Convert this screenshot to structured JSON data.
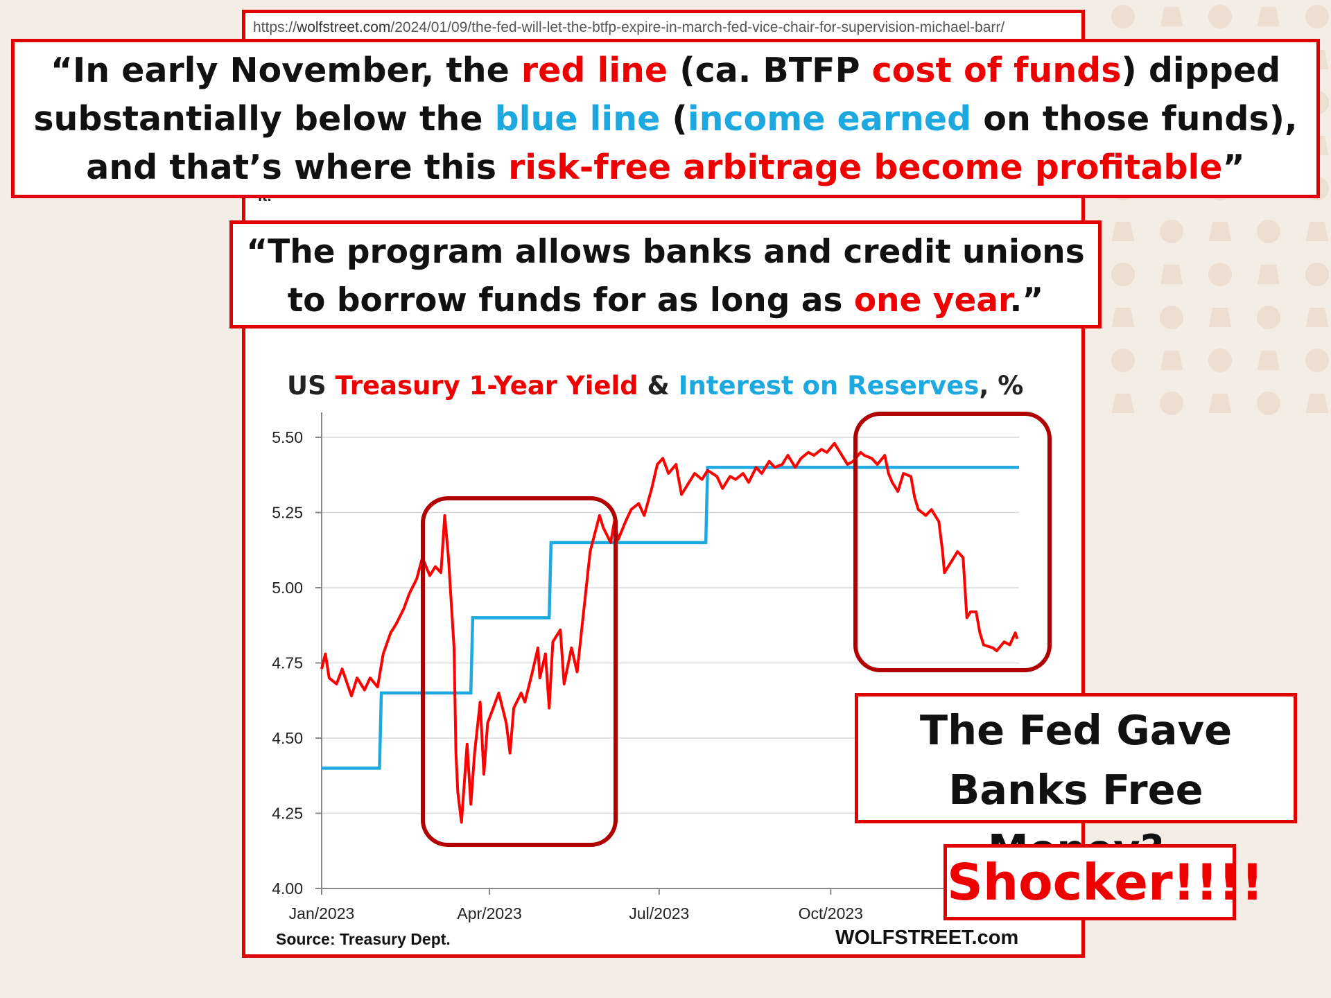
{
  "url": {
    "prefix": "https://",
    "host": "wolfstreet.com",
    "path": "/2024/01/09/the-fed-will-let-the-btfp-expire-in-march-fed-vice-chair-for-supervision-michael-barr/"
  },
  "stray_text": "it.",
  "quote_top": {
    "p1": "“In early November, the ",
    "p2": "red line",
    "p3": " (ca. BTFP ",
    "p4": "cost of funds",
    "p5": ") dipped substantially below the ",
    "p6": "blue line",
    "p7": " (",
    "p8": "income earned",
    "p9": " on those funds), and that’s where this ",
    "p10": "risk-free arbitrage become profitable",
    "p11": "”"
  },
  "quote_mid": {
    "p1": "“The program allows banks and credit unions to borrow funds for as long as ",
    "p2": "one year",
    "p3": ".”"
  },
  "fed_box_text": "The Fed Gave Banks Free Money?",
  "shocker_text": "Shocker!!!!",
  "colors": {
    "accent_red": "#e00000",
    "series_red": "#ff0000",
    "series_blue": "#1ea8e0",
    "box_darkred": "#b00000",
    "grid": "#d9d9d9"
  },
  "chart_data": {
    "type": "line",
    "title_parts": {
      "p1": "US ",
      "p2": "Treasury 1-Year Yield",
      "p3": " & ",
      "p4": "Interest on Reserves",
      "p5": ", %"
    },
    "x_tick_labels": [
      "Jan/2023",
      "Apr/2023",
      "Jul/2023",
      "Oct/2023"
    ],
    "x_range": [
      "2023-01-01",
      "2024-01-10"
    ],
    "ylim": [
      4.0,
      5.5
    ],
    "y_ticks": [
      "5.50",
      "5.25",
      "5.00",
      "4.75",
      "4.50",
      "4.25",
      "4.00"
    ],
    "grid": "horizontal",
    "source": "Source: Treasury Dept.",
    "brand": "WOLFSTREET.com",
    "series": [
      {
        "name": "Treasury 1-Year Yield",
        "color": "#ff0000",
        "points": [
          [
            "2023-01-01",
            4.73
          ],
          [
            "2023-01-03",
            4.78
          ],
          [
            "2023-01-05",
            4.7
          ],
          [
            "2023-01-09",
            4.68
          ],
          [
            "2023-01-12",
            4.73
          ],
          [
            "2023-01-17",
            4.64
          ],
          [
            "2023-01-20",
            4.7
          ],
          [
            "2023-01-24",
            4.66
          ],
          [
            "2023-01-27",
            4.7
          ],
          [
            "2023-01-31",
            4.67
          ],
          [
            "2023-02-03",
            4.78
          ],
          [
            "2023-02-07",
            4.85
          ],
          [
            "2023-02-10",
            4.88
          ],
          [
            "2023-02-14",
            4.93
          ],
          [
            "2023-02-17",
            4.98
          ],
          [
            "2023-02-21",
            5.03
          ],
          [
            "2023-02-24",
            5.1
          ],
          [
            "2023-02-28",
            5.04
          ],
          [
            "2023-03-03",
            5.07
          ],
          [
            "2023-03-06",
            5.05
          ],
          [
            "2023-03-08",
            5.24
          ],
          [
            "2023-03-10",
            5.1
          ],
          [
            "2023-03-13",
            4.8
          ],
          [
            "2023-03-14",
            4.45
          ],
          [
            "2023-03-15",
            4.32
          ],
          [
            "2023-03-17",
            4.22
          ],
          [
            "2023-03-20",
            4.48
          ],
          [
            "2023-03-22",
            4.28
          ],
          [
            "2023-03-24",
            4.45
          ],
          [
            "2023-03-27",
            4.62
          ],
          [
            "2023-03-29",
            4.38
          ],
          [
            "2023-03-31",
            4.55
          ],
          [
            "2023-04-03",
            4.6
          ],
          [
            "2023-04-06",
            4.65
          ],
          [
            "2023-04-10",
            4.55
          ],
          [
            "2023-04-12",
            4.45
          ],
          [
            "2023-04-14",
            4.6
          ],
          [
            "2023-04-18",
            4.65
          ],
          [
            "2023-04-20",
            4.62
          ],
          [
            "2023-04-24",
            4.72
          ],
          [
            "2023-04-27",
            4.8
          ],
          [
            "2023-04-28",
            4.7
          ],
          [
            "2023-05-01",
            4.78
          ],
          [
            "2023-05-03",
            4.6
          ],
          [
            "2023-05-05",
            4.82
          ],
          [
            "2023-05-09",
            4.86
          ],
          [
            "2023-05-11",
            4.68
          ],
          [
            "2023-05-15",
            4.8
          ],
          [
            "2023-05-18",
            4.72
          ],
          [
            "2023-05-22",
            4.95
          ],
          [
            "2023-05-25",
            5.12
          ],
          [
            "2023-05-30",
            5.24
          ],
          [
            "2023-06-01",
            5.2
          ],
          [
            "2023-06-05",
            5.15
          ],
          [
            "2023-06-07",
            5.22
          ],
          [
            "2023-06-09",
            5.16
          ],
          [
            "2023-06-13",
            5.22
          ],
          [
            "2023-06-16",
            5.26
          ],
          [
            "2023-06-20",
            5.28
          ],
          [
            "2023-06-23",
            5.24
          ],
          [
            "2023-06-27",
            5.33
          ],
          [
            "2023-06-30",
            5.41
          ],
          [
            "2023-07-03",
            5.43
          ],
          [
            "2023-07-06",
            5.38
          ],
          [
            "2023-07-10",
            5.41
          ],
          [
            "2023-07-13",
            5.31
          ],
          [
            "2023-07-17",
            5.35
          ],
          [
            "2023-07-20",
            5.38
          ],
          [
            "2023-07-24",
            5.36
          ],
          [
            "2023-07-27",
            5.39
          ],
          [
            "2023-08-01",
            5.37
          ],
          [
            "2023-08-04",
            5.33
          ],
          [
            "2023-08-08",
            5.37
          ],
          [
            "2023-08-11",
            5.36
          ],
          [
            "2023-08-15",
            5.38
          ],
          [
            "2023-08-18",
            5.35
          ],
          [
            "2023-08-22",
            5.4
          ],
          [
            "2023-08-25",
            5.38
          ],
          [
            "2023-08-29",
            5.42
          ],
          [
            "2023-09-01",
            5.4
          ],
          [
            "2023-09-05",
            5.41
          ],
          [
            "2023-09-08",
            5.44
          ],
          [
            "2023-09-12",
            5.4
          ],
          [
            "2023-09-15",
            5.43
          ],
          [
            "2023-09-19",
            5.45
          ],
          [
            "2023-09-22",
            5.44
          ],
          [
            "2023-09-26",
            5.46
          ],
          [
            "2023-09-29",
            5.45
          ],
          [
            "2023-10-03",
            5.48
          ],
          [
            "2023-10-06",
            5.45
          ],
          [
            "2023-10-10",
            5.41
          ],
          [
            "2023-10-13",
            5.42
          ],
          [
            "2023-10-17",
            5.45
          ],
          [
            "2023-10-19",
            5.44
          ],
          [
            "2023-10-23",
            5.43
          ],
          [
            "2023-10-26",
            5.41
          ],
          [
            "2023-10-30",
            5.44
          ],
          [
            "2023-11-01",
            5.38
          ],
          [
            "2023-11-03",
            5.35
          ],
          [
            "2023-11-06",
            5.32
          ],
          [
            "2023-11-09",
            5.38
          ],
          [
            "2023-11-13",
            5.37
          ],
          [
            "2023-11-15",
            5.3
          ],
          [
            "2023-11-17",
            5.26
          ],
          [
            "2023-11-21",
            5.24
          ],
          [
            "2023-11-24",
            5.26
          ],
          [
            "2023-11-28",
            5.22
          ],
          [
            "2023-11-30",
            5.12
          ],
          [
            "2023-12-01",
            5.05
          ],
          [
            "2023-12-04",
            5.08
          ],
          [
            "2023-12-06",
            5.1
          ],
          [
            "2023-12-08",
            5.12
          ],
          [
            "2023-12-11",
            5.1
          ],
          [
            "2023-12-13",
            4.9
          ],
          [
            "2023-12-15",
            4.92
          ],
          [
            "2023-12-18",
            4.92
          ],
          [
            "2023-12-20",
            4.85
          ],
          [
            "2023-12-22",
            4.81
          ],
          [
            "2023-12-27",
            4.8
          ],
          [
            "2023-12-29",
            4.79
          ],
          [
            "2024-01-02",
            4.82
          ],
          [
            "2024-01-05",
            4.81
          ],
          [
            "2024-01-08",
            4.85
          ],
          [
            "2024-01-09",
            4.83
          ]
        ]
      },
      {
        "name": "Interest on Reserves",
        "color": "#1ea8e0",
        "points": [
          [
            "2023-01-01",
            4.4
          ],
          [
            "2023-02-01",
            4.4
          ],
          [
            "2023-02-02",
            4.65
          ],
          [
            "2023-03-22",
            4.65
          ],
          [
            "2023-03-23",
            4.9
          ],
          [
            "2023-05-03",
            4.9
          ],
          [
            "2023-05-04",
            5.15
          ],
          [
            "2023-07-26",
            5.15
          ],
          [
            "2023-07-27",
            5.4
          ],
          [
            "2024-01-10",
            5.4
          ]
        ]
      }
    ]
  }
}
